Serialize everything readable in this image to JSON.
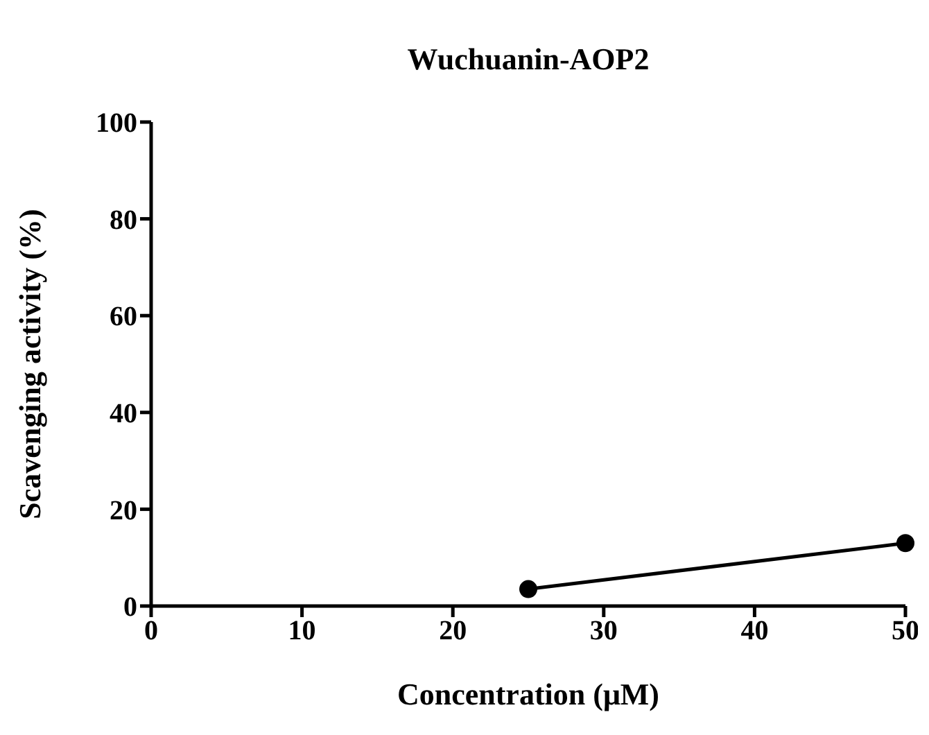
{
  "chart_data": {
    "type": "line",
    "title": "Wuchuanin-AOP2",
    "xlabel": "Concentration (μM)",
    "ylabel": "Scavenging activity (%)",
    "x": [
      25,
      50
    ],
    "series": [
      {
        "color": "#000000",
        "values": [
          3.5,
          13
        ]
      }
    ],
    "xlim": [
      0,
      50
    ],
    "xticks": [
      0,
      10,
      20,
      30,
      40,
      50
    ],
    "ylim": [
      0,
      100
    ],
    "yticks": [
      0,
      20,
      40,
      60,
      80,
      100
    ],
    "grid": false,
    "legend": false,
    "marker": "circle",
    "line_style": "solid"
  }
}
